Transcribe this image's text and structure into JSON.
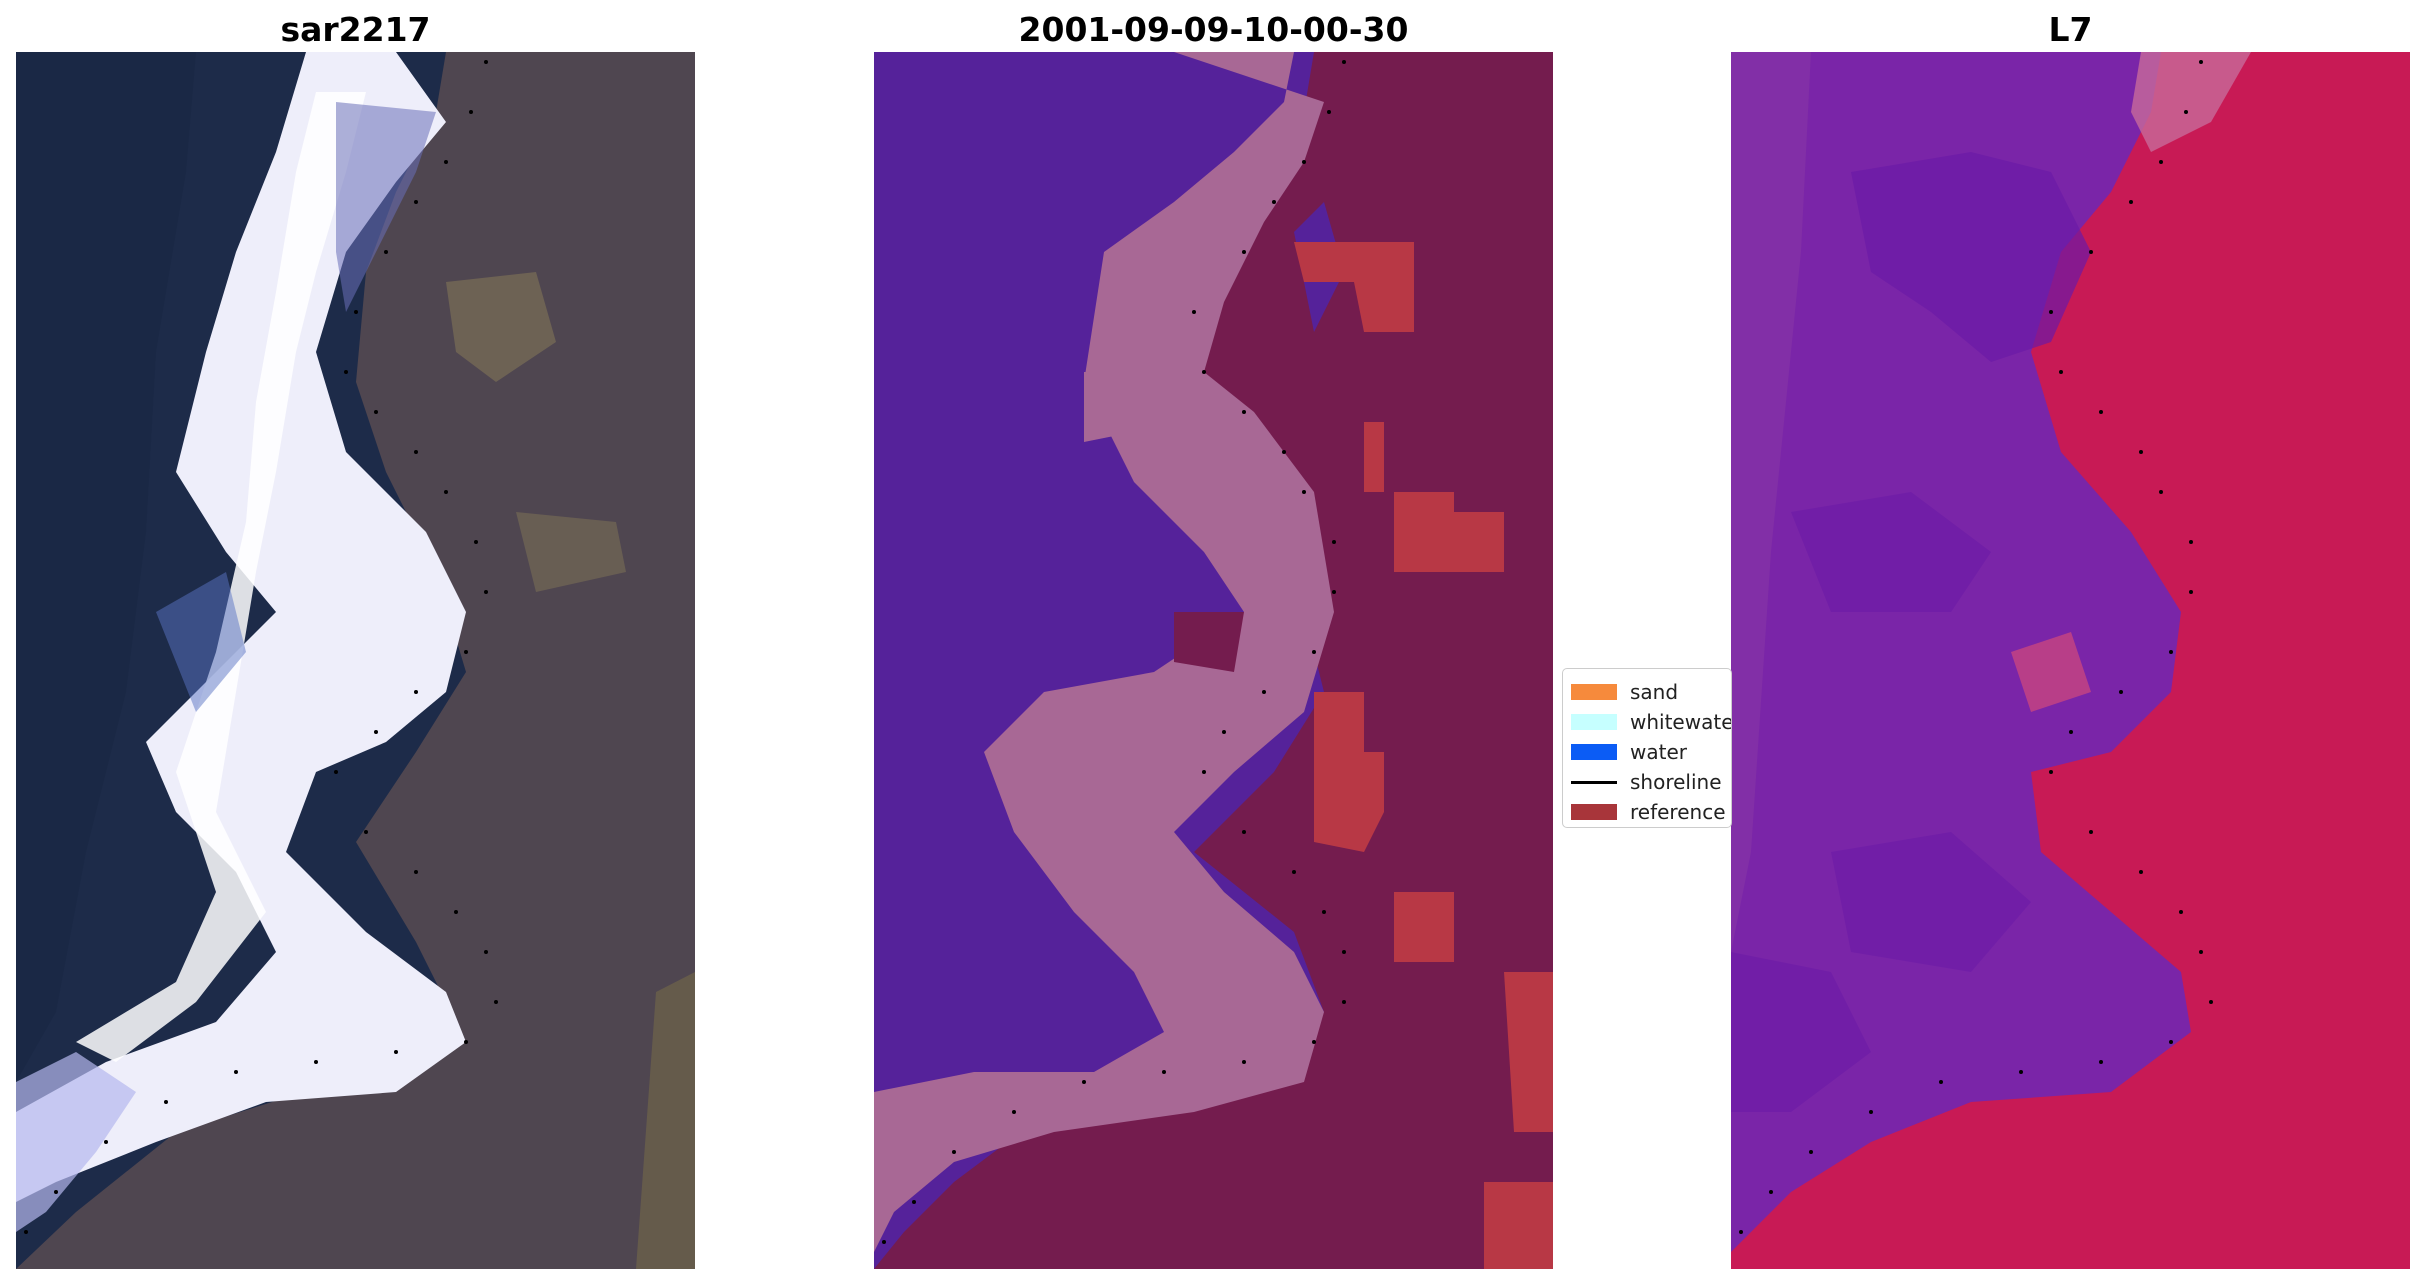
{
  "panels": [
    {
      "title": "sar2217"
    },
    {
      "title": "2001-09-09-10-00-30"
    },
    {
      "title": "L7"
    }
  ],
  "legend": {
    "items": [
      {
        "label": "sand",
        "color": "#f68a3c",
        "kind": "patch"
      },
      {
        "label": "whitewater",
        "color": "#c6ffff",
        "kind": "patch"
      },
      {
        "label": "water",
        "color": "#0b5cf5",
        "kind": "patch"
      },
      {
        "label": "shoreline",
        "color": "#000000",
        "kind": "line"
      },
      {
        "label": "reference",
        "color": "#a8353a",
        "kind": "patch"
      }
    ]
  },
  "colors": {
    "water_class": "#55229a",
    "whitewater_class": "#a86895",
    "land_class": "#741c4e",
    "sand_class": "#b83845",
    "l7_water": "#7a25a8",
    "l7_land": "#c81a55",
    "rgb_water": "#1c2c4c",
    "rgb_surf": "#f2f0fa",
    "rgb_land": "#574b55"
  }
}
